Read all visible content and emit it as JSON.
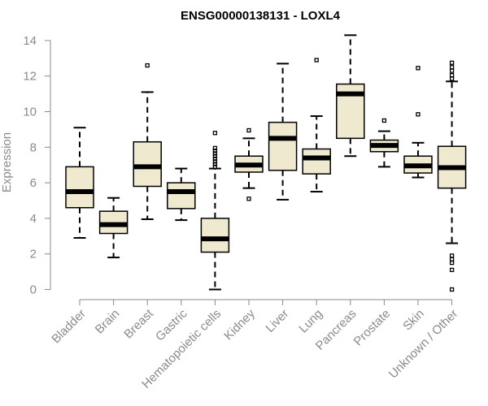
{
  "chart_data": {
    "type": "boxplot",
    "title": "ENSG00000138131 - LOXL4",
    "xlabel": "",
    "ylabel": "Expression",
    "ylim": [
      0,
      14
    ],
    "yticks": [
      0,
      2,
      4,
      6,
      8,
      10,
      12,
      14
    ],
    "box_color": "#efe9d0",
    "categories": [
      "Bladder",
      "Brain",
      "Breast",
      "Gastric",
      "Hematopoietic cells",
      "Kidney",
      "Liver",
      "Lung",
      "Pancreas",
      "Prostate",
      "Skin",
      "Unknown / Other"
    ],
    "boxes": [
      {
        "name": "Bladder",
        "whisker_low": 2.9,
        "q1": 4.6,
        "median": 5.5,
        "q3": 6.9,
        "whisker_high": 9.1,
        "outliers": []
      },
      {
        "name": "Brain",
        "whisker_low": 1.8,
        "q1": 3.15,
        "median": 3.65,
        "q3": 4.4,
        "whisker_high": 5.15,
        "outliers": []
      },
      {
        "name": "Breast",
        "whisker_low": 3.95,
        "q1": 5.8,
        "median": 6.9,
        "q3": 8.3,
        "whisker_high": 11.1,
        "outliers": [
          12.6
        ]
      },
      {
        "name": "Gastric",
        "whisker_low": 3.9,
        "q1": 4.55,
        "median": 5.5,
        "q3": 6.0,
        "whisker_high": 6.8,
        "outliers": []
      },
      {
        "name": "Hematopoietic cells",
        "whisker_low": 0.0,
        "q1": 2.1,
        "median": 2.85,
        "q3": 4.0,
        "whisker_high": 6.8,
        "outliers": [
          6.9,
          7.05,
          7.2,
          7.35,
          7.5,
          7.65,
          7.8,
          7.95,
          8.8
        ]
      },
      {
        "name": "Kidney",
        "whisker_low": 5.7,
        "q1": 6.6,
        "median": 7.0,
        "q3": 7.5,
        "whisker_high": 8.5,
        "outliers": [
          5.1,
          8.95
        ]
      },
      {
        "name": "Liver",
        "whisker_low": 5.05,
        "q1": 6.7,
        "median": 8.5,
        "q3": 9.4,
        "whisker_high": 12.7,
        "outliers": []
      },
      {
        "name": "Lung",
        "whisker_low": 5.5,
        "q1": 6.5,
        "median": 7.4,
        "q3": 7.9,
        "whisker_high": 9.75,
        "outliers": [
          12.9
        ]
      },
      {
        "name": "Pancreas",
        "whisker_low": 7.5,
        "q1": 8.5,
        "median": 11.0,
        "q3": 11.55,
        "whisker_high": 14.3,
        "outliers": []
      },
      {
        "name": "Prostate",
        "whisker_low": 6.9,
        "q1": 7.75,
        "median": 8.1,
        "q3": 8.4,
        "whisker_high": 8.9,
        "outliers": [
          9.5
        ]
      },
      {
        "name": "Skin",
        "whisker_low": 6.3,
        "q1": 6.55,
        "median": 6.95,
        "q3": 7.5,
        "whisker_high": 8.25,
        "outliers": [
          9.85,
          12.45
        ]
      },
      {
        "name": "Unknown / Other",
        "whisker_low": 2.6,
        "q1": 5.7,
        "median": 6.85,
        "q3": 8.05,
        "whisker_high": 11.7,
        "outliers": [
          0.0,
          1.1,
          1.5,
          1.7,
          1.9,
          11.85,
          12.05,
          12.3,
          12.5,
          12.75
        ]
      }
    ]
  }
}
